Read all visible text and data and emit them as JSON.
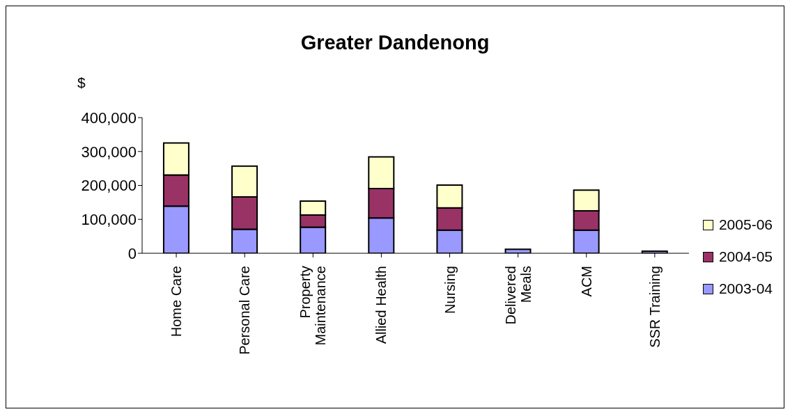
{
  "chart_data": {
    "type": "bar",
    "title": "Greater Dandenong",
    "ylabel": "$",
    "stacked": true,
    "legend": "right",
    "grid": false,
    "categories": [
      "Home Care",
      "Personal Care",
      "Property Maintenance",
      "Allied Health",
      "Nursing",
      "Delivered Meals",
      "ACM",
      "SSR Training"
    ],
    "series": [
      {
        "name": "2003-04",
        "color": "#9999ff",
        "values": [
          139000,
          71000,
          77000,
          104000,
          68000,
          12000,
          68000,
          6000
        ]
      },
      {
        "name": "2004-05",
        "color": "#993366",
        "values": [
          92000,
          95000,
          36000,
          87000,
          66000,
          null,
          57000,
          null
        ]
      },
      {
        "name": "2005-06",
        "color": "#ffffcc",
        "values": [
          94000,
          91000,
          41000,
          93000,
          67000,
          null,
          61000,
          null
        ]
      }
    ],
    "ylim": [
      0,
      400000
    ],
    "yticks": [
      {
        "value": 0,
        "label": "0"
      },
      {
        "value": 100000,
        "label": "100,000"
      },
      {
        "value": 200000,
        "label": "200,000"
      },
      {
        "value": 300000,
        "label": "300,000"
      },
      {
        "value": 400000,
        "label": "400,000"
      }
    ]
  }
}
